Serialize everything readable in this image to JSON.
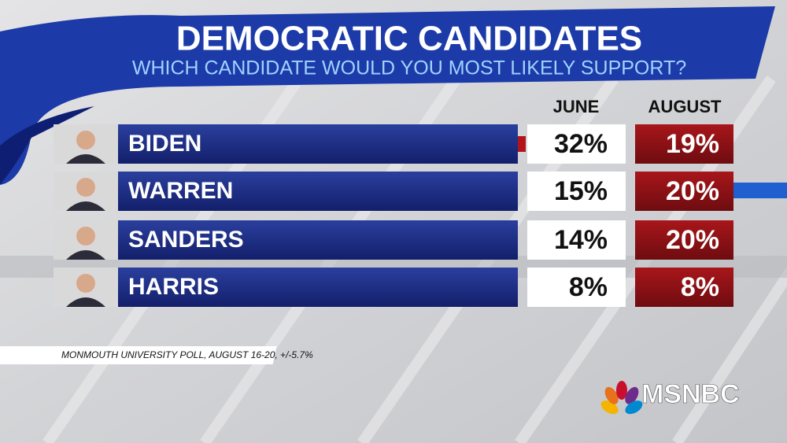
{
  "header": {
    "title": "DEMOCRATIC CANDIDATES",
    "subtitle": "WHICH CANDIDATE WOULD YOU MOST LIKELY SUPPORT?"
  },
  "table": {
    "columns": [
      "JUNE",
      "AUGUST"
    ],
    "rows": [
      [
        "BIDEN",
        "32%",
        "19%"
      ],
      [
        "WARREN",
        "15%",
        "20%"
      ],
      [
        "SANDERS",
        "14%",
        "20%"
      ],
      [
        "HARRIS",
        "8%",
        "8%"
      ]
    ]
  },
  "footer": {
    "source": "MONMOUTH UNIVERSITY POLL, AUGUST 16-20, +/-5.7%",
    "logo": "MSNBC"
  }
}
